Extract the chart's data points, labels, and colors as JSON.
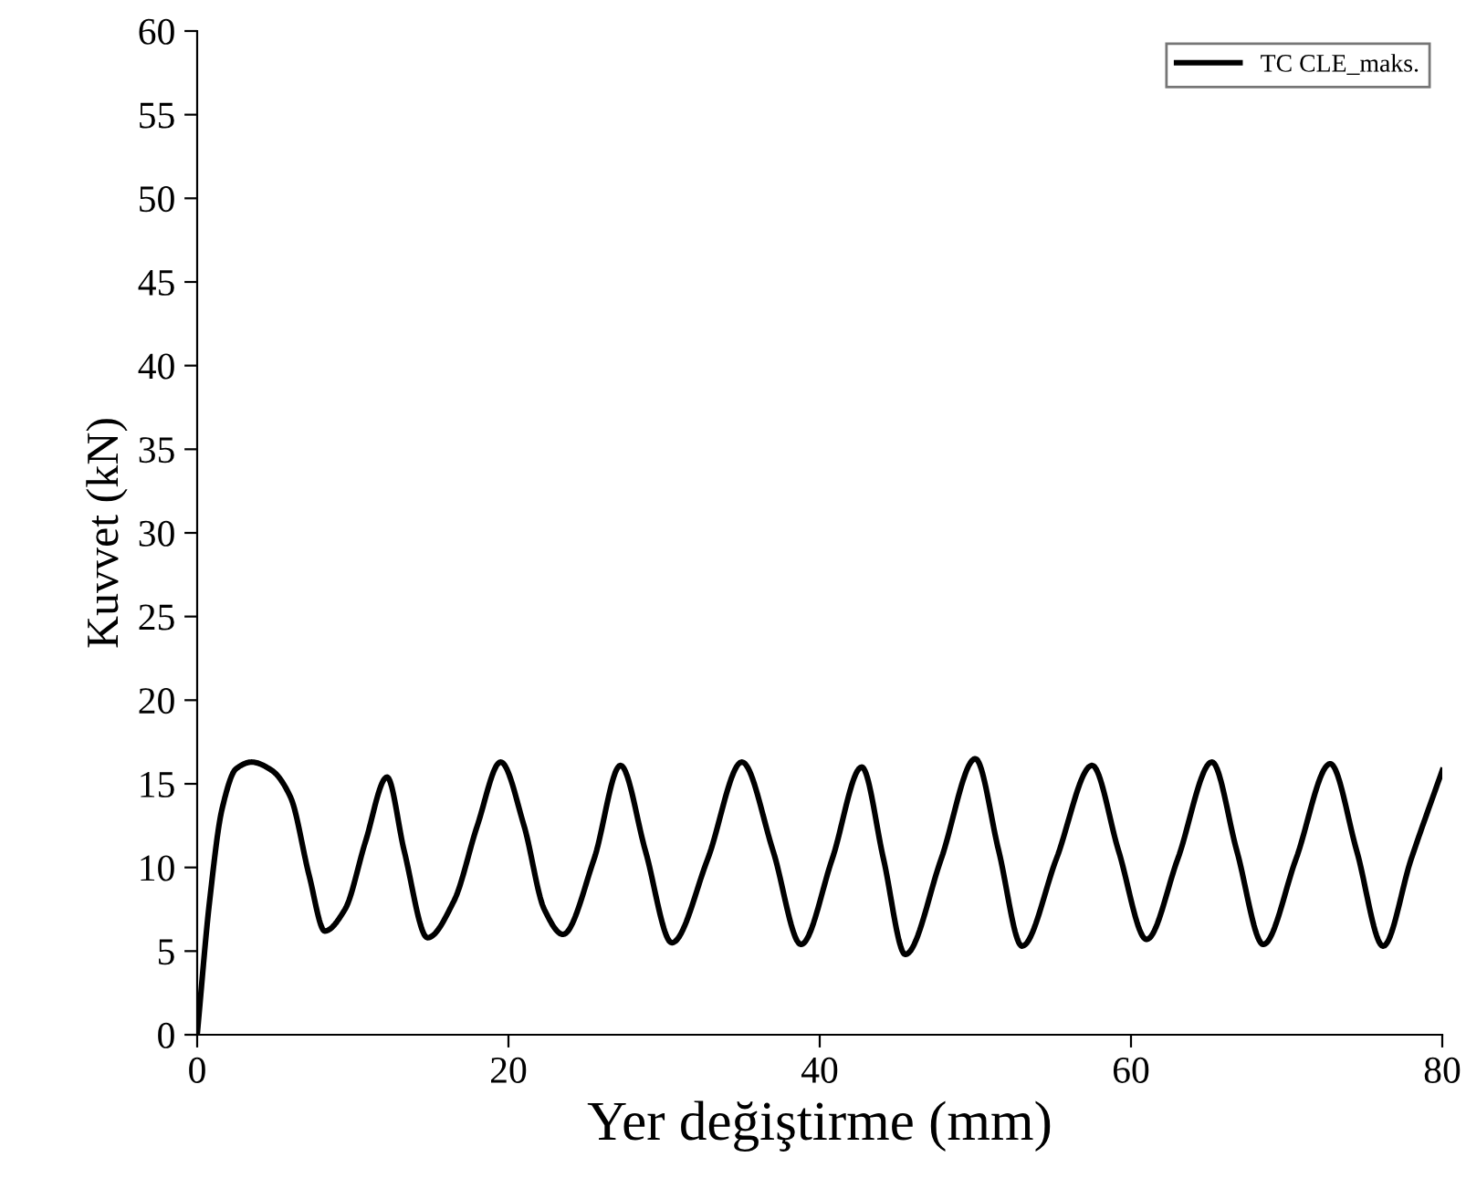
{
  "chart_data": {
    "type": "line",
    "xlabel": "Yer değiştirme (mm)",
    "ylabel": "Kuvvet (kN)",
    "xlim": [
      0,
      80
    ],
    "xticks": [
      0,
      20,
      40,
      60,
      80
    ],
    "ylim": [
      0,
      60
    ],
    "yticks": [
      0,
      5,
      10,
      15,
      20,
      25,
      30,
      35,
      40,
      45,
      50,
      55,
      60
    ],
    "legend": "top right",
    "grid": false,
    "series": [
      {
        "name": "TC CLE_maks.",
        "color": "#000000",
        "x": [
          0,
          0.8,
          1.6,
          2.5,
          3.5,
          4.8,
          6,
          7.2,
          8.2,
          9.5,
          10.8,
          12.2,
          13.3,
          14.8,
          16.5,
          18,
          19.5,
          21,
          22.3,
          23.5,
          25.5,
          27.2,
          28.8,
          30.5,
          32.8,
          35,
          37,
          38.8,
          40.8,
          42.7,
          44.1,
          45.5,
          47.8,
          50,
          51.5,
          53,
          55.2,
          57.5,
          59.2,
          61,
          63,
          65.2,
          66.8,
          68.5,
          70.6,
          72.8,
          74.5,
          76.2,
          78,
          80
        ],
        "values": [
          0,
          8,
          13.5,
          15.9,
          16.3,
          15.8,
          14.2,
          9.5,
          6.2,
          7.5,
          11.5,
          15.4,
          11,
          5.8,
          8,
          12.5,
          16.3,
          12.5,
          7.5,
          6.0,
          10.5,
          16.1,
          11,
          5.5,
          10.5,
          16.3,
          11,
          5.4,
          10.5,
          16.0,
          10.5,
          4.8,
          10.5,
          16.5,
          11,
          5.3,
          10.5,
          16.1,
          11,
          5.7,
          10.5,
          16.3,
          11,
          5.4,
          10.5,
          16.2,
          11,
          5.3,
          10.5,
          15.8
        ]
      }
    ]
  }
}
